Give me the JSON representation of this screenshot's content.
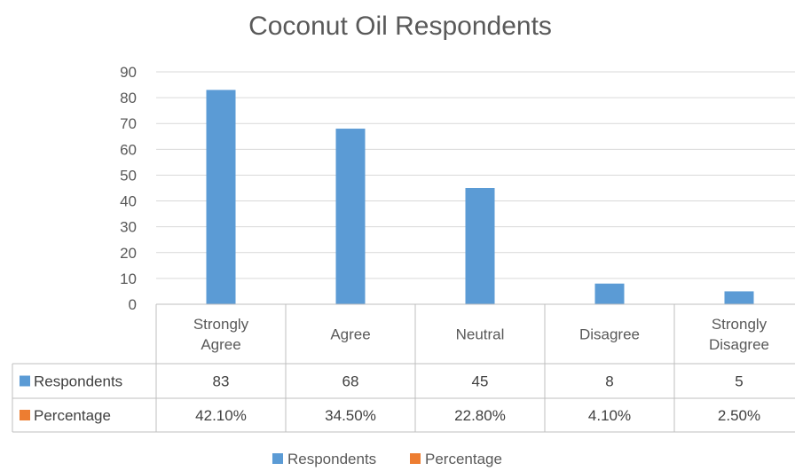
{
  "chart_data": {
    "type": "bar",
    "title": "Coconut Oil Respondents",
    "categories": [
      [
        "Strongly",
        "Agree"
      ],
      [
        "Agree"
      ],
      [
        "Neutral"
      ],
      [
        "Disagree"
      ],
      [
        "Strongly",
        "Disagree"
      ]
    ],
    "series": [
      {
        "name": "Respondents",
        "values": [
          83,
          68,
          45,
          8,
          5
        ],
        "color": "#5b9bd5"
      },
      {
        "name": "Percentage",
        "values": [
          0.421,
          0.345,
          0.228,
          0.041,
          0.025
        ],
        "color": "#ed7d31"
      }
    ],
    "data_table": {
      "rows": [
        {
          "label": "Respondents",
          "cells": [
            "83",
            "68",
            "45",
            "8",
            "5"
          ]
        },
        {
          "label": "Percentage",
          "cells": [
            "42.10%",
            "34.50%",
            "22.80%",
            "4.10%",
            "2.50%"
          ]
        }
      ]
    },
    "ylim": [
      0,
      90
    ],
    "yticks": [
      "0",
      "10",
      "20",
      "30",
      "40",
      "50",
      "60",
      "70",
      "80",
      "90"
    ],
    "grid": true,
    "legend_position": "bottom"
  }
}
